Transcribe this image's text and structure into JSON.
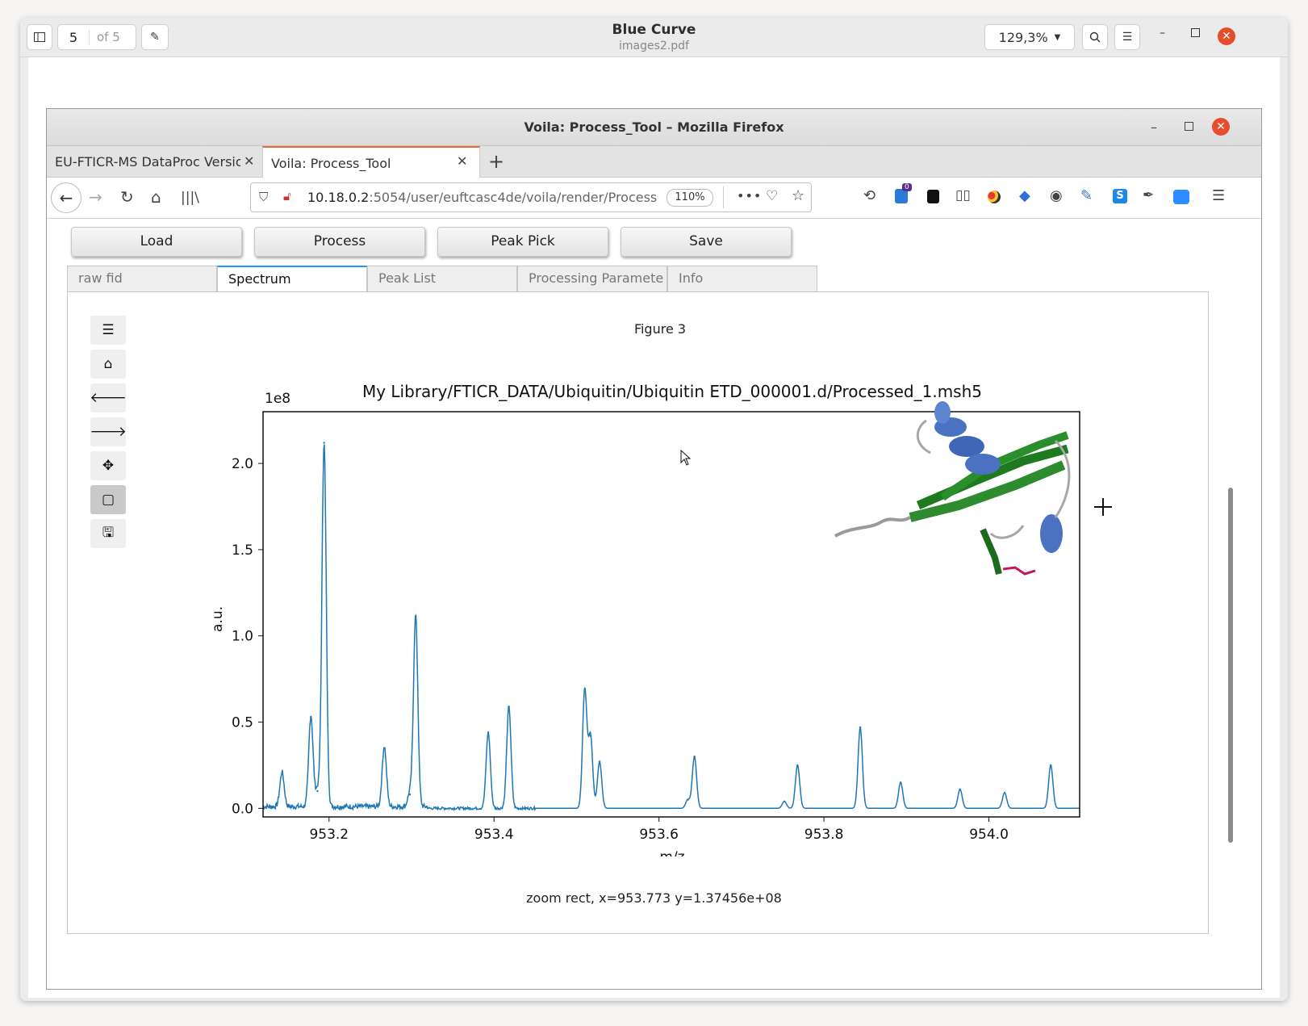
{
  "viewer": {
    "page_number": "5",
    "page_of": "of 5",
    "title": "Blue Curve",
    "subtitle": "images2.pdf",
    "zoom": "129,3%"
  },
  "firefox": {
    "window_title": "Voila: Process_Tool – Mozilla Firefox",
    "tabs": [
      {
        "label": "EU-FTICR-MS DataProc Versio",
        "active": false
      },
      {
        "label": "Voila: Process_Tool",
        "active": true
      }
    ],
    "url_host": "10.18.0.2",
    "url_rest": ":5054/user/euftcasc4de/voila/render/Process",
    "zoom_badge": "110%",
    "notification_count": "0"
  },
  "app": {
    "buttons": [
      "Load",
      "Process",
      "Peak Pick",
      "Save"
    ],
    "tabs": [
      {
        "label": "raw fid",
        "active": false
      },
      {
        "label": "Spectrum",
        "active": true
      },
      {
        "label": "Peak List",
        "active": false
      },
      {
        "label": "Processing Paramete",
        "active": false
      },
      {
        "label": "Info",
        "active": false
      }
    ],
    "figure_label": "Figure 3",
    "status": "zoom rect, x=953.773 y=1.37456e+08",
    "toolbar_icons": [
      "menu-icon",
      "home-icon",
      "back-arrow-icon",
      "forward-arrow-icon",
      "pan-icon",
      "zoom-rect-icon",
      "save-icon"
    ]
  },
  "chart_data": {
    "type": "line",
    "title": "My Library/FTICR_DATA/Ubiquitin/Ubiquitin ETD_000001.d/Processed_1.msh5",
    "xlabel": "m/z",
    "ylabel": "a.u.",
    "y_scale_label": "1e8",
    "xlim": [
      953.12,
      954.11
    ],
    "ylim": [
      -0.05,
      2.3
    ],
    "xticks": [
      953.2,
      953.4,
      953.6,
      953.8,
      954.0
    ],
    "xtick_labels": [
      "953.2",
      "953.4",
      "953.6",
      "953.8",
      "954.0"
    ],
    "yticks": [
      0.0,
      0.5,
      1.0,
      1.5,
      2.0
    ],
    "ytick_labels": [
      "0.0",
      "0.5",
      "1.0",
      "1.5",
      "2.0"
    ],
    "series": [
      {
        "color": "#1f77b4",
        "peaks": [
          {
            "x": 953.143,
            "y": 0.2
          },
          {
            "x": 953.178,
            "y": 0.53
          },
          {
            "x": 953.186,
            "y": 0.1
          },
          {
            "x": 953.194,
            "y": 2.12
          },
          {
            "x": 953.267,
            "y": 0.35
          },
          {
            "x": 953.298,
            "y": 0.08
          },
          {
            "x": 953.305,
            "y": 1.11
          },
          {
            "x": 953.393,
            "y": 0.44
          },
          {
            "x": 953.418,
            "y": 0.59
          },
          {
            "x": 953.51,
            "y": 0.69
          },
          {
            "x": 953.517,
            "y": 0.42
          },
          {
            "x": 953.528,
            "y": 0.27
          },
          {
            "x": 953.635,
            "y": 0.05
          },
          {
            "x": 953.643,
            "y": 0.3
          },
          {
            "x": 953.752,
            "y": 0.04
          },
          {
            "x": 953.768,
            "y": 0.25
          },
          {
            "x": 953.844,
            "y": 0.47
          },
          {
            "x": 953.893,
            "y": 0.15
          },
          {
            "x": 953.965,
            "y": 0.11
          },
          {
            "x": 954.019,
            "y": 0.09
          },
          {
            "x": 954.075,
            "y": 0.25
          }
        ]
      }
    ]
  }
}
